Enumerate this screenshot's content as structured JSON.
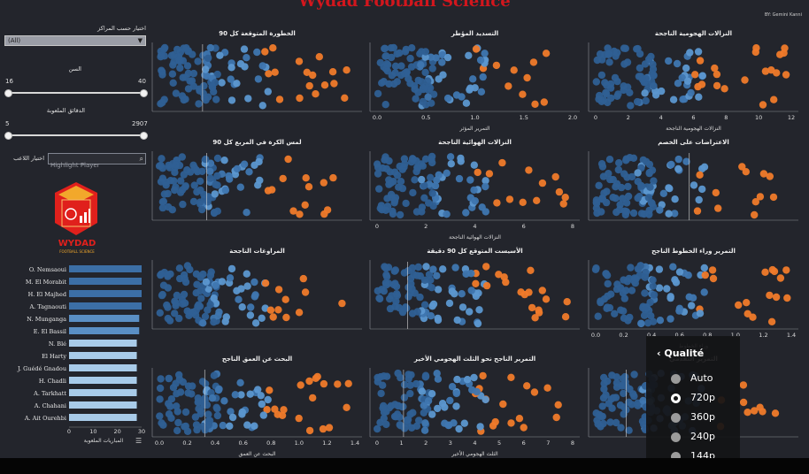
{
  "header": {
    "title": "Wydad Football Science",
    "byline": "BY: Gemini Kanni"
  },
  "filters": {
    "position_label": "اختيار حسب المراكز",
    "position_value": "(All)",
    "age_label": "السن",
    "age_min": "16",
    "age_max": "40",
    "minutes_label": "الدقائق الملعوبة",
    "minutes_min": "5",
    "minutes_max": "2907",
    "search_placeholder": "Highlight Player",
    "search_label": "اختيار اللاعب"
  },
  "logo": {
    "name": "WYDAD",
    "subtitle": "FOOTBALL SCIENCE",
    "color_red": "#e0201c",
    "color_gold": "#f2a82b"
  },
  "minutes_chart": {
    "axis_label": "المباريات الملعوبة",
    "ticks": [
      "0",
      "10",
      "20",
      "30"
    ],
    "max": 30,
    "players": [
      {
        "name": "O. Nemsaoui",
        "value": 30,
        "color": "#3c6fa6"
      },
      {
        "name": "M. El Morabit",
        "value": 30,
        "color": "#3c6fa6"
      },
      {
        "name": "H. El Majhed",
        "value": 30,
        "color": "#3c6fa6"
      },
      {
        "name": "A. Tagnaouti",
        "value": 30,
        "color": "#3c6fa6"
      },
      {
        "name": "N. Munganga",
        "value": 29,
        "color": "#5a8fc4"
      },
      {
        "name": "E. El Bassil",
        "value": 29,
        "color": "#5a8fc4"
      },
      {
        "name": "N. Blé",
        "value": 28,
        "color": "#a8cbe9"
      },
      {
        "name": "El Harty",
        "value": 28,
        "color": "#a8cbe9"
      },
      {
        "name": "J. Guédé Gnadou",
        "value": 28,
        "color": "#a8cbe9"
      },
      {
        "name": "H. Chadli",
        "value": 28,
        "color": "#a8cbe9"
      },
      {
        "name": "A. Tarkhatt",
        "value": 28,
        "color": "#a8cbe9"
      },
      {
        "name": "A. Chahani",
        "value": 28,
        "color": "#a8cbe9"
      },
      {
        "name": "A. Ait Ourehbi",
        "value": 28,
        "color": "#a8cbe9"
      }
    ]
  },
  "palette": {
    "dark_blue": "#2f5f93",
    "mid_blue": "#3f76b0",
    "light_blue": "#5c97d0",
    "orange": "#f07a2a",
    "dark_orange": "#c9501d"
  },
  "panels": [
    {
      "id": "xg90",
      "title": "الخطورة المتوقعة كل 90",
      "axis_label": "",
      "ticks": [],
      "cutoff_frac": 0.24,
      "wide": false
    },
    {
      "id": "shots",
      "title": "التسديد المؤطر",
      "axis_label": "التمرير المؤثر",
      "ticks": [
        "0.0",
        "0.5",
        "1.0",
        "1.5",
        "2.0"
      ],
      "cutoff_frac": 0.0,
      "wide": false
    },
    {
      "id": "duels_off",
      "title": "النزالات الهجومية الناجحة",
      "axis_label": "النزالات الهجومية الناجحة",
      "ticks": [
        "0",
        "2",
        "4",
        "6",
        "8",
        "10",
        "12"
      ],
      "cutoff_frac": 0.0,
      "wide": false
    },
    {
      "id": "box_touch",
      "title": "لمس الكرة في المربع كل 90",
      "axis_label": "",
      "ticks": [],
      "cutoff_frac": 0.26,
      "wide": false
    },
    {
      "id": "air_duels",
      "title": "النزالات الهوائية الناجحة",
      "axis_label": "النزالات الهوائية الناجحة",
      "ticks": [
        "0",
        "2",
        "4",
        "6",
        "8"
      ],
      "cutoff_frac": 0.0,
      "wide": false
    },
    {
      "id": "interceptions",
      "title": "الاعتراضات على الخصم",
      "axis_label": "",
      "ticks": [],
      "cutoff_frac": 0.48,
      "wide": false
    },
    {
      "id": "dribbles",
      "title": "المراوغات الناجحة",
      "axis_label": "",
      "ticks": [],
      "cutoff_frac": 0.0,
      "wide": false
    },
    {
      "id": "xa90",
      "title": "الأسيست المتوقع كل 90 دقيقة",
      "axis_label": "",
      "ticks": [],
      "cutoff_frac": 0.18,
      "wide": false
    },
    {
      "id": "through",
      "title": "التمرير وراء الخطوط الناجح",
      "axis_label": "وراء الخطوط",
      "ticks": [
        "0.0",
        "0.2",
        "0.4",
        "0.6",
        "0.8",
        "1.0",
        "1.2",
        "1.4"
      ],
      "cutoff_frac": 0.0,
      "wide": false
    },
    {
      "id": "depth",
      "title": "البحث عن العمق الناجح",
      "axis_label": "البحث عن العمق",
      "ticks": [
        "0.0",
        "0.2",
        "0.4",
        "0.6",
        "0.8",
        "1.0",
        "1.2",
        "1.4"
      ],
      "cutoff_frac": 0.25,
      "wide": false
    },
    {
      "id": "final_third",
      "title": "التمرير الناجح نحو الثلث الهجومي الأخير",
      "axis_label": "الثلث الهجومي الأخير",
      "ticks": [
        "0",
        "1",
        "2",
        "3",
        "4",
        "5",
        "6",
        "7",
        "8"
      ],
      "cutoff_frac": 0.16,
      "wide": false
    },
    {
      "id": "progressive",
      "title": "التمرير التقدمي",
      "axis_label": "",
      "ticks": [],
      "cutoff_frac": 0.18,
      "wide": false
    }
  ],
  "quality_menu": {
    "title": "Qualité",
    "options": [
      "Auto",
      "720p",
      "360p",
      "240p",
      "144p"
    ],
    "selected": "720p"
  }
}
